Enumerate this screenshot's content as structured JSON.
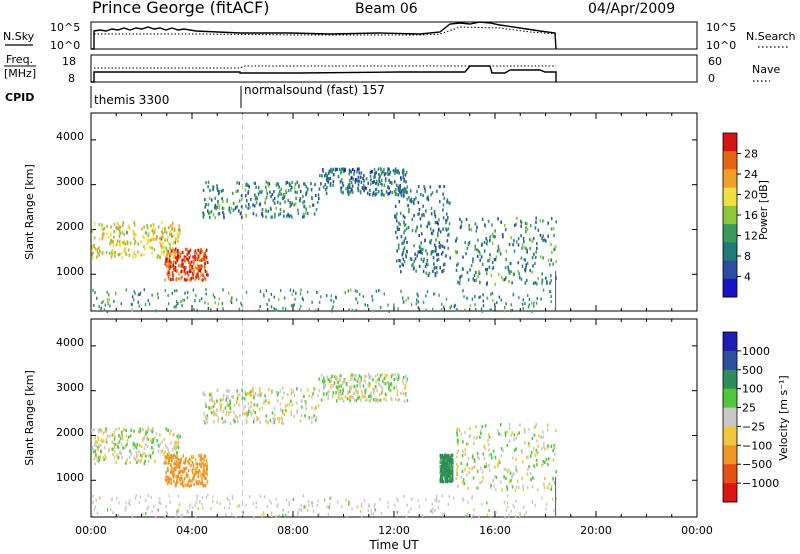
{
  "header": {
    "title": "Prince George (fitACF)",
    "beam": "Beam 06",
    "date": "04/Apr/2009"
  },
  "noise_panel": {
    "left_label": "N.Sky",
    "left_ticks": [
      "10^5",
      "10^0"
    ],
    "right_ticks": [
      "10^5",
      "10^0"
    ],
    "right_label": "N.Search"
  },
  "freq_panel": {
    "left_label_line1": "Freq.",
    "left_label_line2": "[MHz]",
    "left_ticks": [
      "18",
      "8"
    ],
    "right_ticks": [
      "60",
      "0"
    ],
    "right_label": "Nave"
  },
  "cpid_panel": {
    "label": "CPID",
    "segments": [
      {
        "name": "themis 3300",
        "start_hour": 0.0
      },
      {
        "name": "normalsound (fast) 157",
        "start_hour": 6.0
      }
    ]
  },
  "x_axis": {
    "title": "Time UT",
    "ticks": [
      "00:00",
      "04:00",
      "08:00",
      "12:00",
      "16:00",
      "20:00",
      "00:00"
    ]
  },
  "chart_data": [
    {
      "type": "heatmap",
      "title": "",
      "xlabel": "Time UT",
      "ylabel": "Slant Range [km]",
      "xlim": [
        0,
        24
      ],
      "ylim": [
        180,
        4600
      ],
      "yticks": [
        "1000",
        "2000",
        "3000",
        "4000"
      ],
      "colorbar": {
        "label": "Power [dB]",
        "ticks": [
          "4",
          "8",
          "12",
          "16",
          "20",
          "24",
          "28"
        ],
        "range": [
          0,
          30
        ],
        "colors": [
          "#1515c8",
          "#2a4fa0",
          "#1f7a7a",
          "#3c9a5a",
          "#8cc83c",
          "#f0e040",
          "#f0a028",
          "#e66414",
          "#d21414"
        ]
      },
      "data_extent_hours": [
        0.0,
        18.4
      ],
      "echo_regions": [
        {
          "t": [
            0.0,
            3.5
          ],
          "range_km": [
            1400,
            2200
          ],
          "value_db": 18
        },
        {
          "t": [
            2.9,
            4.6
          ],
          "range_km": [
            900,
            1600
          ],
          "value_db": 26
        },
        {
          "t": [
            4.4,
            9.0
          ],
          "range_km": [
            2300,
            3100
          ],
          "value_db": 10
        },
        {
          "t": [
            9.0,
            12.5
          ],
          "range_km": [
            2800,
            3400
          ],
          "value_db": 8
        },
        {
          "t": [
            12.0,
            14.2
          ],
          "range_km": [
            1000,
            3000
          ],
          "value_db": 8
        },
        {
          "t": [
            14.4,
            18.4
          ],
          "range_km": [
            800,
            2300
          ],
          "value_db": 10
        }
      ]
    },
    {
      "type": "heatmap",
      "title": "",
      "xlabel": "Time UT",
      "ylabel": "Slant Range [km]",
      "xlim": [
        0,
        24
      ],
      "ylim": [
        180,
        4600
      ],
      "yticks": [
        "1000",
        "2000",
        "3000",
        "4000"
      ],
      "colorbar": {
        "label": "Velocity [m s⁻¹]",
        "ticks": [
          "1000",
          "500",
          "100",
          "25",
          "−25",
          "−100",
          "−500",
          "−1000"
        ],
        "colors": [
          "#1e1eb4",
          "#2d50a0",
          "#2d8c5a",
          "#50c83c",
          "#c8c8c8",
          "#f0c83c",
          "#f09628",
          "#e65014",
          "#dc1414"
        ]
      },
      "data_extent_hours": [
        0.0,
        18.4
      ],
      "echo_regions": [
        {
          "t": [
            0.0,
            3.5
          ],
          "range_km": [
            1400,
            2200
          ],
          "value_ms": 0
        },
        {
          "t": [
            2.9,
            4.6
          ],
          "range_km": [
            900,
            1600
          ],
          "value_ms": -150
        },
        {
          "t": [
            4.4,
            9.0
          ],
          "range_km": [
            2300,
            3100
          ],
          "value_ms": 0
        },
        {
          "t": [
            9.0,
            12.5
          ],
          "range_km": [
            2800,
            3400
          ],
          "value_ms": 0
        },
        {
          "t": [
            13.8,
            14.3
          ],
          "range_km": [
            1000,
            1600
          ],
          "value_ms": 150
        },
        {
          "t": [
            14.4,
            18.4
          ],
          "range_km": [
            800,
            2300
          ],
          "value_ms": 0
        }
      ]
    }
  ]
}
